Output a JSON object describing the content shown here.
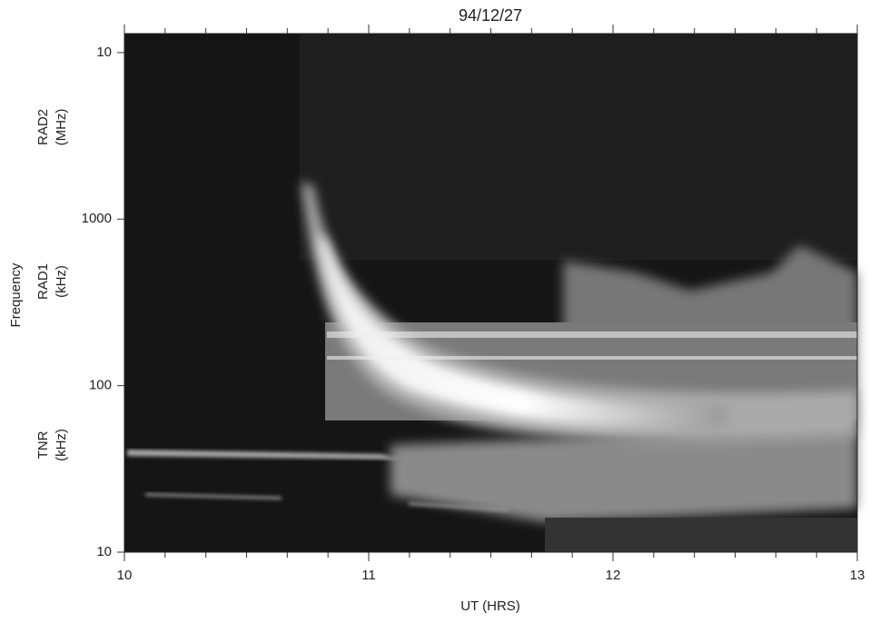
{
  "chart_data": {
    "type": "spectrogram",
    "title": "94/12/27",
    "xlabel": "UT (HRS)",
    "ylabel": "Frequency",
    "bands": [
      {
        "name": "RAD2",
        "unit": "(MHz)"
      },
      {
        "name": "RAD1",
        "unit": "(kHz)"
      },
      {
        "name": "TNR",
        "unit": "(kHz)"
      }
    ],
    "xlim": [
      10,
      13
    ],
    "xticks": [
      10,
      11,
      12,
      13
    ],
    "ylim": [
      10,
      13000
    ],
    "yscale": "log",
    "yticks": [
      10,
      100,
      1000,
      {
        "value": 10000,
        "label": "10"
      }
    ]
  }
}
